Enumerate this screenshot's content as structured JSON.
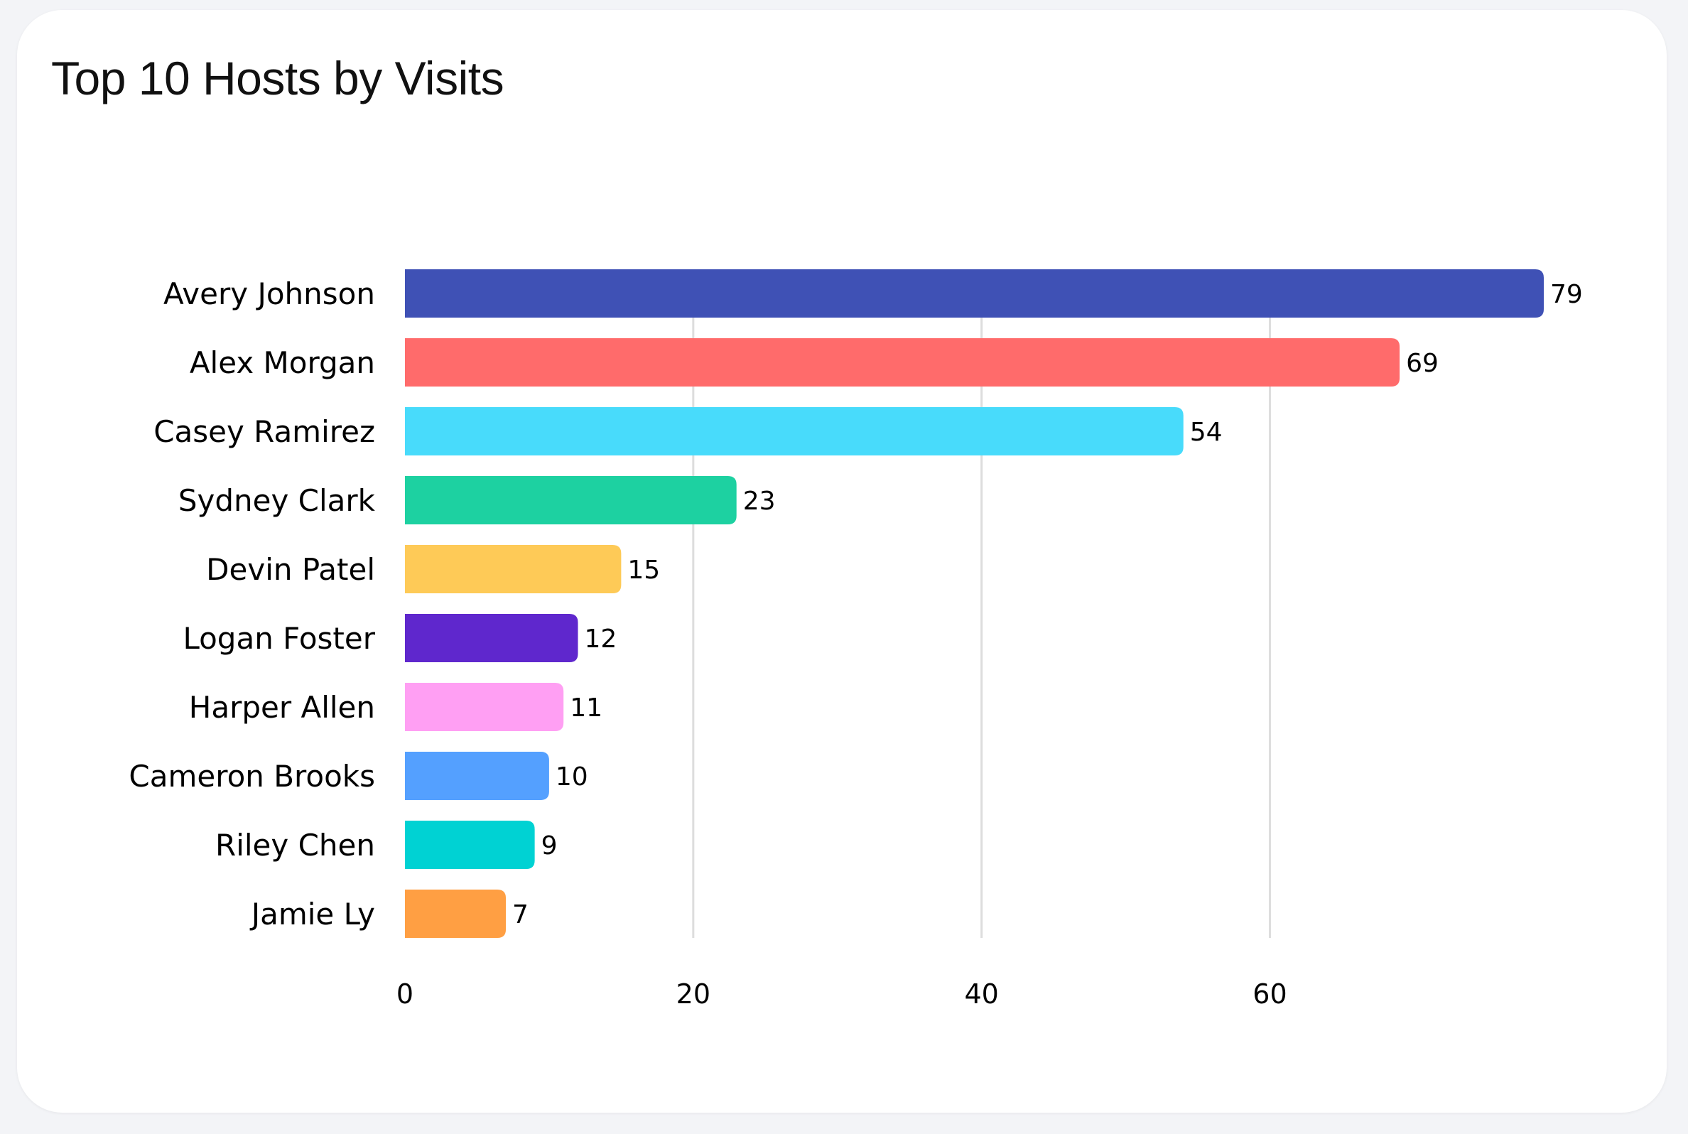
{
  "chart_data": {
    "type": "bar",
    "orientation": "horizontal",
    "title": "Top 10 Hosts by Visits",
    "categories": [
      "Avery Johnson",
      "Alex Morgan",
      "Casey Ramirez",
      "Sydney Clark",
      "Devin Patel",
      "Logan Foster",
      "Harper Allen",
      "Cameron Brooks",
      "Riley Chen",
      "Jamie Ly"
    ],
    "values": [
      79,
      69,
      54,
      23,
      15,
      12,
      11,
      10,
      9,
      7
    ],
    "colors": [
      "#3f51b5",
      "#ff6b6b",
      "#48dbfb",
      "#1dd1a1",
      "#feca57",
      "#5f27cd",
      "#ff9ff3",
      "#54a0ff",
      "#00d2d3",
      "#ff9f43"
    ],
    "xticks": [
      0,
      20,
      40,
      60
    ],
    "xlim": [
      0,
      79
    ],
    "xlabel": "",
    "ylabel": "",
    "grid": "vertical",
    "legend": "none",
    "data_labels": true
  }
}
